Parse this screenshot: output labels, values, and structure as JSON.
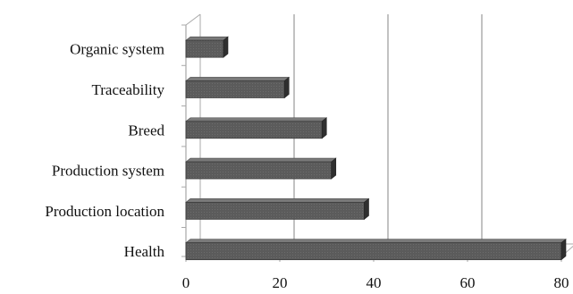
{
  "chart_data": {
    "type": "bar",
    "orientation": "horizontal",
    "style": "3d",
    "categories": [
      "Organic system",
      "Traceability",
      "Breed",
      "Production system",
      "Production location",
      "Health"
    ],
    "values": [
      8,
      21,
      29,
      31,
      38,
      80
    ],
    "xlim": [
      0,
      80
    ],
    "xticks": [
      0,
      20,
      40,
      60,
      80
    ],
    "grid": "vertical lines at 20, 40, 60",
    "legend": "none",
    "colors": {
      "bar": "#5b5b5b",
      "bar_end": "#2f2f2f",
      "bar_top": "#7a7a7a",
      "grid": "#9a9a9a",
      "axis": "#a8a8a8",
      "text": "#111111"
    }
  }
}
